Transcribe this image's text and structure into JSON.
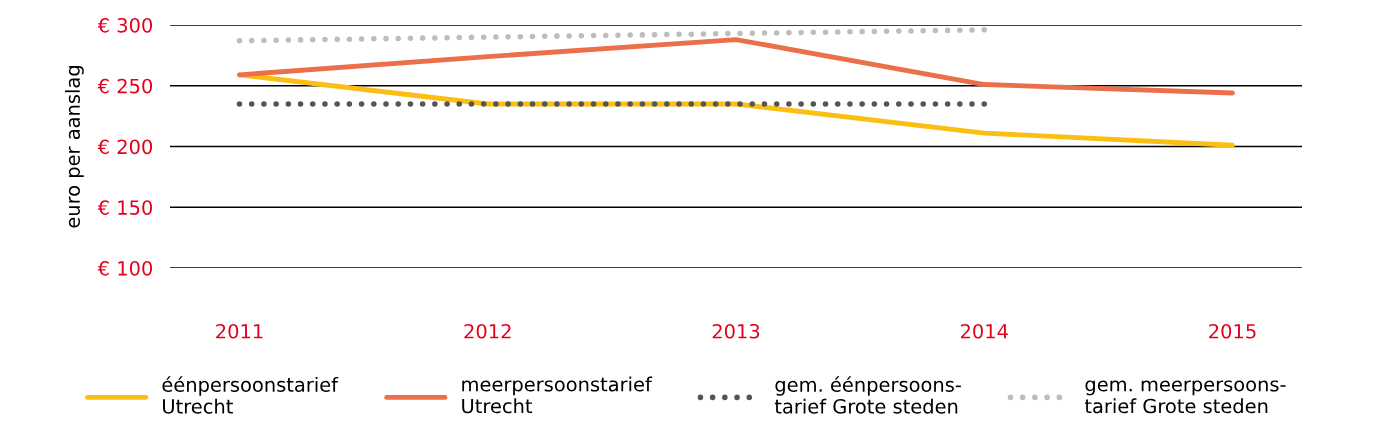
{
  "chart_data": {
    "type": "line",
    "ylabel": "euro per aanslag",
    "categories": [
      "2011",
      "2012",
      "2013",
      "2014",
      "2015"
    ],
    "series": [
      {
        "name": "éénpersoonstarief\nUtrecht",
        "color": "#fbbf14",
        "line_style": "solid",
        "values": [
          259,
          235,
          235,
          211,
          201
        ]
      },
      {
        "name": "meerpersoonstarief\nUtrecht",
        "color": "#ec6f4b",
        "line_style": "solid",
        "values": [
          259,
          274,
          288,
          251,
          244
        ]
      },
      {
        "name": "gem. éénpersoons-\ntarief Grote steden",
        "color": "#555555",
        "line_style": "dotted",
        "values": [
          235,
          235,
          235,
          235,
          null
        ]
      },
      {
        "name": "gem. meerpersoons-\ntarief Grote steden",
        "color": "#bdbdbd",
        "line_style": "dotted",
        "values": [
          287,
          290,
          293,
          296,
          null
        ]
      }
    ],
    "ylim": [
      100,
      300
    ],
    "yticks": [
      {
        "value": 100,
        "label": "€ 100"
      },
      {
        "value": 150,
        "label": "€ 150"
      },
      {
        "value": 200,
        "label": "€ 200"
      },
      {
        "value": 250,
        "label": "€ 250"
      },
      {
        "value": 300,
        "label": "€ 300"
      }
    ],
    "grid": "y",
    "legend": "bottom",
    "marker": "none"
  }
}
